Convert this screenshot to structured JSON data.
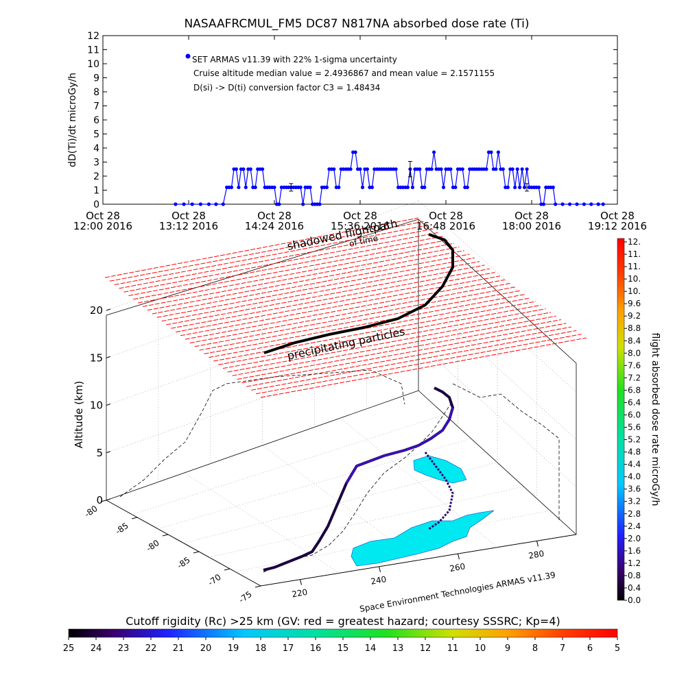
{
  "chart_data": [
    {
      "type": "scatter",
      "title": "NASAAFRCMUL_FM5 DC87 N817NA absorbed dose rate (Ti)",
      "ylabel": "dD(Ti)/dt microGy/h",
      "xlabel": "",
      "ylim": [
        0,
        12
      ],
      "yticks": [
        "0",
        "1",
        "2",
        "3",
        "4",
        "5",
        "6",
        "7",
        "8",
        "9",
        "10",
        "11",
        "12"
      ],
      "xticks": [
        {
          "line1": "Oct 28",
          "line2": "12:00 2016",
          "t": 720
        },
        {
          "line1": "Oct 28",
          "line2": "13:12 2016",
          "t": 792
        },
        {
          "line1": "Oct 28",
          "line2": "14:24 2016",
          "t": 864
        },
        {
          "line1": "Oct 28",
          "line2": "15:36 2016",
          "t": 936
        },
        {
          "line1": "Oct 28",
          "line2": "16:48 2016",
          "t": 1008
        },
        {
          "line1": "Oct 28",
          "line2": "18:00 2016",
          "t": 1080
        },
        {
          "line1": "Oct 28",
          "line2": "19:12 2016",
          "t": 1152
        }
      ],
      "xlim_minutes_of_day": [
        720,
        1152
      ],
      "grid": false,
      "legend": {
        "placement": "top-left",
        "entry": "SET ARMAS v11.39 with 22% 1-sigma uncertainty",
        "line2": "Cruise altitude median value = 2.4936867 and mean value = 2.1571155",
        "line3": "D(si) -> D(ti) conversion factor C3 = 1.48434"
      },
      "series": [
        {
          "name": "SET ARMAS v11.39",
          "color": "#0000ff",
          "points_minutes_of_day": [
            [
              781,
              0
            ],
            [
              788,
              0
            ],
            [
              795,
              0
            ],
            [
              802,
              0
            ],
            [
              809,
              0
            ],
            [
              815,
              0
            ],
            [
              821,
              0
            ],
            [
              824,
              1.2
            ],
            [
              826,
              1.2
            ],
            [
              828,
              1.2
            ],
            [
              830,
              2.5
            ],
            [
              832,
              2.5
            ],
            [
              834,
              1.2
            ],
            [
              836,
              2.5
            ],
            [
              838,
              2.5
            ],
            [
              840,
              1.2
            ],
            [
              842,
              2.5
            ],
            [
              844,
              2.5
            ],
            [
              846,
              1.2
            ],
            [
              848,
              1.2
            ],
            [
              850,
              2.5
            ],
            [
              852,
              2.5
            ],
            [
              854,
              2.5
            ],
            [
              856,
              1.2
            ],
            [
              858,
              1.2
            ],
            [
              860,
              1.2
            ],
            [
              862,
              1.2
            ],
            [
              864,
              1.2
            ],
            [
              866,
              0
            ],
            [
              868,
              0
            ],
            [
              870,
              1.2
            ],
            [
              872,
              1.2
            ],
            [
              874,
              1.2
            ],
            [
              876,
              1.2
            ],
            [
              878,
              1.2
            ],
            [
              880,
              1.2
            ],
            [
              882,
              1.2
            ],
            [
              884,
              1.2
            ],
            [
              886,
              1.2
            ],
            [
              888,
              0
            ],
            [
              890,
              1.2
            ],
            [
              892,
              1.2
            ],
            [
              894,
              1.2
            ],
            [
              896,
              0
            ],
            [
              898,
              0
            ],
            [
              900,
              0
            ],
            [
              902,
              0
            ],
            [
              904,
              1.2
            ],
            [
              906,
              1.2
            ],
            [
              908,
              1.2
            ],
            [
              910,
              2.5
            ],
            [
              912,
              2.5
            ],
            [
              914,
              2.5
            ],
            [
              916,
              1.2
            ],
            [
              918,
              1.2
            ],
            [
              920,
              2.5
            ],
            [
              922,
              2.5
            ],
            [
              924,
              2.5
            ],
            [
              926,
              2.5
            ],
            [
              928,
              2.5
            ],
            [
              930,
              3.7
            ],
            [
              932,
              3.7
            ],
            [
              934,
              2.5
            ],
            [
              936,
              2.5
            ],
            [
              938,
              1.2
            ],
            [
              940,
              2.5
            ],
            [
              942,
              2.5
            ],
            [
              944,
              1.2
            ],
            [
              946,
              1.2
            ],
            [
              948,
              2.5
            ],
            [
              950,
              2.5
            ],
            [
              952,
              2.5
            ],
            [
              954,
              2.5
            ],
            [
              956,
              2.5
            ],
            [
              958,
              2.5
            ],
            [
              960,
              2.5
            ],
            [
              962,
              2.5
            ],
            [
              964,
              2.5
            ],
            [
              966,
              2.5
            ],
            [
              968,
              1.2
            ],
            [
              970,
              1.2
            ],
            [
              972,
              1.2
            ],
            [
              974,
              1.2
            ],
            [
              976,
              1.2
            ],
            [
              978,
              2.5
            ],
            [
              980,
              1.2
            ],
            [
              982,
              2.5
            ],
            [
              984,
              2.5
            ],
            [
              986,
              2.5
            ],
            [
              988,
              1.2
            ],
            [
              990,
              1.2
            ],
            [
              992,
              2.5
            ],
            [
              994,
              2.5
            ],
            [
              996,
              2.5
            ],
            [
              998,
              3.7
            ],
            [
              1000,
              2.5
            ],
            [
              1002,
              2.5
            ],
            [
              1004,
              2.5
            ],
            [
              1006,
              1.2
            ],
            [
              1008,
              2.5
            ],
            [
              1010,
              2.5
            ],
            [
              1012,
              2.5
            ],
            [
              1014,
              1.2
            ],
            [
              1016,
              1.2
            ],
            [
              1018,
              2.5
            ],
            [
              1020,
              2.5
            ],
            [
              1022,
              2.5
            ],
            [
              1024,
              1.2
            ],
            [
              1026,
              1.2
            ],
            [
              1028,
              2.5
            ],
            [
              1030,
              2.5
            ],
            [
              1032,
              2.5
            ],
            [
              1034,
              2.5
            ],
            [
              1036,
              2.5
            ],
            [
              1038,
              2.5
            ],
            [
              1040,
              2.5
            ],
            [
              1042,
              2.5
            ],
            [
              1044,
              3.7
            ],
            [
              1046,
              3.7
            ],
            [
              1048,
              2.5
            ],
            [
              1050,
              2.5
            ],
            [
              1052,
              3.7
            ],
            [
              1054,
              2.5
            ],
            [
              1056,
              2.5
            ],
            [
              1058,
              1.2
            ],
            [
              1060,
              1.2
            ],
            [
              1062,
              2.5
            ],
            [
              1064,
              2.5
            ],
            [
              1066,
              1.2
            ],
            [
              1068,
              2.5
            ],
            [
              1070,
              1.2
            ],
            [
              1072,
              2.5
            ],
            [
              1074,
              1.2
            ],
            [
              1076,
              2.5
            ],
            [
              1078,
              1.2
            ],
            [
              1080,
              1.2
            ],
            [
              1082,
              1.2
            ],
            [
              1084,
              1.2
            ],
            [
              1086,
              1.2
            ],
            [
              1088,
              0
            ],
            [
              1090,
              0
            ],
            [
              1092,
              1.2
            ],
            [
              1094,
              1.2
            ],
            [
              1096,
              1.2
            ],
            [
              1098,
              1.2
            ],
            [
              1100,
              0
            ],
            [
              1106,
              0
            ],
            [
              1112,
              0
            ],
            [
              1118,
              0
            ],
            [
              1124,
              0
            ],
            [
              1130,
              0
            ],
            [
              1136,
              0
            ],
            [
              1140,
              0
            ]
          ],
          "error_bars_minutes_of_day": [
            [
              878,
              1.2,
              0.27
            ],
            [
              978,
              2.5,
              0.55
            ],
            [
              1076,
              1.2,
              0.27
            ]
          ]
        }
      ]
    },
    {
      "type": "scatter",
      "subtype": "3d-trajectory",
      "zlabel": "Altitude (km)",
      "zticks": [
        "0",
        "5",
        "10",
        "15",
        "20"
      ],
      "zlim": [
        0,
        20
      ],
      "latitude_ticks": [
        "-80",
        "-85",
        "-80",
        "-85",
        "-70",
        "-75"
      ],
      "longitude_ticks": [
        "220",
        "240",
        "260",
        "280"
      ],
      "annotations": [
        "shadowed flightpath",
        "of time",
        "precipitating particles",
        "Space Environment Technologies ARMAS v11.39"
      ],
      "path_colors": [
        "#000000",
        "#2a005a",
        "#3c10b0",
        "#1e30ff",
        "#00ffff"
      ]
    }
  ],
  "colorbar_right": {
    "label": "flight absorbed dose rate microGy/h",
    "ticks": [
      "12.",
      "11.",
      "11.",
      "10.",
      "10.",
      "9.6",
      "9.2",
      "8.8",
      "8.4",
      "8.0",
      "7.6",
      "7.2",
      "6.8",
      "6.4",
      "6.0",
      "5.6",
      "5.2",
      "4.8",
      "4.4",
      "4.0",
      "3.6",
      "3.2",
      "2.8",
      "2.4",
      "2.0",
      "1.6",
      "1.2",
      "0.8",
      "0.4",
      "0.0"
    ]
  },
  "colorbar_bottom": {
    "title": "Cutoff rigidity (Rc) >25 km (GV: red = greatest hazard; courtesy SSSRC; Kp=4)",
    "ticks": [
      "25",
      "24",
      "23",
      "22",
      "21",
      "20",
      "19",
      "18",
      "17",
      "16",
      "15",
      "14",
      "13",
      "12",
      "11",
      "10",
      "9",
      "8",
      "7",
      "6",
      "5"
    ]
  },
  "colors": {
    "series": "#0000ff",
    "hazard_grid": "#ff0000",
    "terrain": "#00ffff"
  }
}
